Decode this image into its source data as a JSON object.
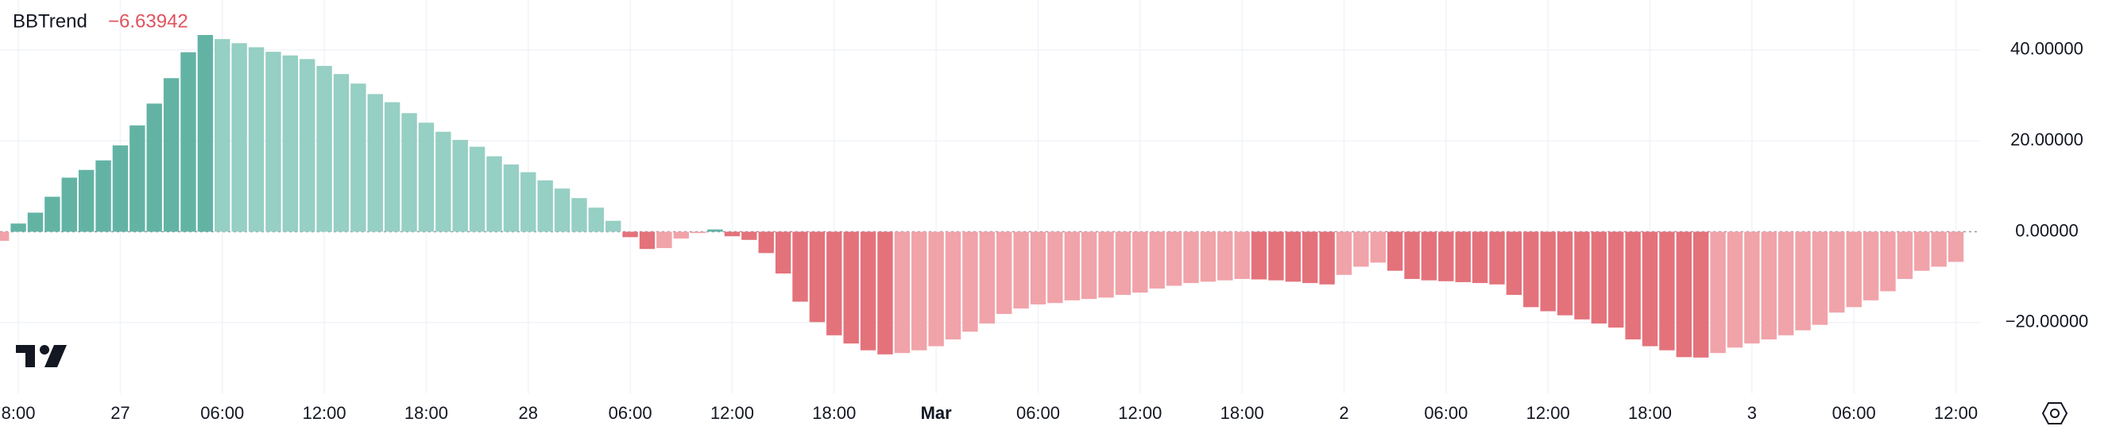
{
  "chart_data": {
    "type": "bar",
    "title": "BBTrend",
    "legend_value": "−6.63942",
    "categories": [
      null,
      "8:00",
      null,
      null,
      null,
      null,
      null,
      "27",
      null,
      null,
      null,
      null,
      null,
      "06:00",
      null,
      null,
      null,
      null,
      null,
      "12:00",
      null,
      null,
      null,
      null,
      null,
      "18:00",
      null,
      null,
      null,
      null,
      null,
      "28",
      null,
      null,
      null,
      null,
      null,
      "06:00",
      null,
      null,
      null,
      null,
      null,
      "12:00",
      null,
      null,
      null,
      null,
      null,
      "18:00",
      null,
      null,
      null,
      null,
      null,
      "Mar",
      null,
      null,
      null,
      null,
      null,
      "06:00",
      null,
      null,
      null,
      null,
      null,
      "12:00",
      null,
      null,
      null,
      null,
      null,
      "18:00",
      null,
      null,
      null,
      null,
      null,
      "2",
      null,
      null,
      null,
      null,
      null,
      "06:00",
      null,
      null,
      null,
      null,
      null,
      "12:00",
      null,
      null,
      null,
      null,
      null,
      "18:00",
      null,
      null,
      null,
      null,
      null,
      "3",
      null,
      null,
      null,
      null,
      null,
      "06:00",
      null,
      null,
      null,
      null,
      null,
      "12:00"
    ],
    "values": [
      -2,
      1.8,
      4.2,
      7.7,
      11.9,
      13.6,
      15.7,
      19,
      23.4,
      28.2,
      33.8,
      39.5,
      43.3,
      42.4,
      41.5,
      40.6,
      39.6,
      38.8,
      38,
      36.5,
      34.7,
      32.6,
      30.3,
      28.5,
      26.1,
      24,
      22,
      20.2,
      18.7,
      16.6,
      14.8,
      13.1,
      11.3,
      9.5,
      7.4,
      5.3,
      2.4,
      -1.2,
      -3.8,
      -3.6,
      -1.5,
      -0.3,
      0.5,
      -1,
      -1.8,
      -4.7,
      -9.2,
      -15.4,
      -19.9,
      -22.8,
      -24.6,
      -26.1,
      -27,
      -26.7,
      -26.1,
      -25.2,
      -23.7,
      -22,
      -20.2,
      -18.1,
      -16.9,
      -16,
      -15.7,
      -15.1,
      -14.8,
      -14.5,
      -13.9,
      -13.4,
      -12.5,
      -11.9,
      -11.3,
      -11,
      -10.7,
      -10.4,
      -10.5,
      -10.7,
      -11,
      -11.3,
      -11.6,
      -9.5,
      -7.7,
      -6.8,
      -8.6,
      -10.4,
      -10.7,
      -10.9,
      -11.1,
      -11.3,
      -11.6,
      -13.9,
      -16.6,
      -17.5,
      -18.4,
      -19.3,
      -20.2,
      -21.1,
      -23.7,
      -25.2,
      -26.1,
      -27.6,
      -27.7,
      -26.7,
      -25.5,
      -24.6,
      -23.7,
      -22.8,
      -21.7,
      -20.5,
      -17.8,
      -16.6,
      -15.1,
      -13.1,
      -10.4,
      -8.6,
      -7.7,
      -6.63942
    ],
    "colors": {
      "positive_rising": "#63b3a5",
      "positive_falling": "#96cfc3",
      "negative_falling": "#e3727b",
      "negative_rising": "#f0a3a9"
    },
    "ylim": [
      -35.6,
      51
    ],
    "yticks": [
      {
        "value": 40,
        "label": "40.00000"
      },
      {
        "value": 20,
        "label": "20.00000"
      },
      {
        "value": 0,
        "label": "0.00000"
      },
      {
        "value": -20,
        "label": "−20.00000"
      }
    ],
    "grid": true
  }
}
